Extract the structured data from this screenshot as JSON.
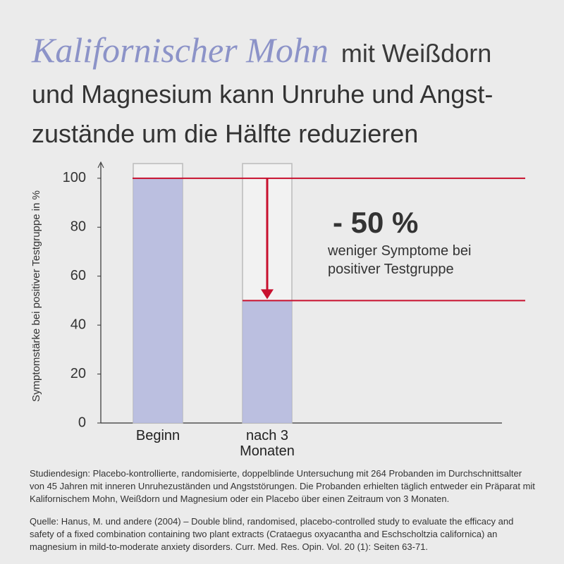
{
  "chart_data": {
    "type": "bar",
    "title_highlight": "Kalifornischer Mohn",
    "title_lines": [
      "mit Weißdorn",
      "und Magnesium kann Unruhe und Angst-",
      "zustände um die Hälfte reduzieren"
    ],
    "y_label": "Symptomstärke bei positiver Testgruppe in %",
    "categories": [
      "Beginn",
      "nach 3 Monaten"
    ],
    "values": [
      100,
      50
    ],
    "color": "#b5b9de",
    "line_color": "#c8102e",
    "ylim": [
      0,
      106
    ],
    "yticks": [
      0,
      20,
      40,
      60,
      80,
      100
    ],
    "annotation": "- 50 %",
    "annotation_lines": [
      "weniger Symptome bei",
      "positiver Testgruppe"
    ]
  },
  "notes": [
    "Studiendesign: Placebo-kontrollierte, randomisierte, doppelblinde Untersuchung mit 264 Probanden im Durchschnittsalter von 45 Jahren mit inneren Unruhezuständen und Angststörungen. Die Probanden erhielten täglich entweder ein Präparat mit Kalifornischem Mohn, Weißdorn und Magnesium oder ein Placebo über einen Zeitraum von 3 Monaten.",
    "Quelle: Hanus, M. und andere (2004) – Double blind, randomised, placebo-controlled study to evaluate the efficacy and safety of a fixed combination containing two plant extracts (Crataegus oxyacantha and Eschscholtzia californica) an magnesium in mild-to-moderate anxiety disorders. Curr. Med. Res. Opin. Vol. 20 (1): Seiten 63-71."
  ]
}
